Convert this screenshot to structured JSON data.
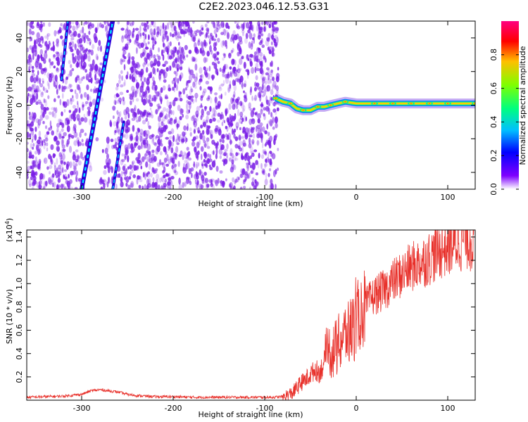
{
  "title": "C2E2.2023.046.12.53.G31",
  "colors": {
    "snr_line": "#e8302a",
    "spectrogram_noise": "#7a1ee6",
    "colorbar_stops": [
      "#ffffff",
      "#7f00ff",
      "#0000ff",
      "#00bfff",
      "#00ff7f",
      "#7fff00",
      "#ffbf00",
      "#ff0000",
      "#ff0080"
    ]
  },
  "chart_data": [
    {
      "type": "heatmap",
      "name": "spectrogram",
      "xlabel": "Height of straight line (km)",
      "ylabel": "Frequency (Hz)",
      "xlim": [
        -360,
        130
      ],
      "ylim": [
        -50,
        50
      ],
      "x_ticks": [
        -300,
        -200,
        -100,
        0,
        100
      ],
      "y_ticks": [
        -40,
        -20,
        0,
        20,
        40
      ],
      "colorbar": {
        "label": "Normalized spectral amplitude",
        "range": [
          0.0,
          1.0
        ],
        "ticks": [
          0.0,
          0.2,
          0.4,
          0.6,
          0.8
        ]
      },
      "noise_region_x": [
        -360,
        -85
      ],
      "gap_region": {
        "x": [
          -292,
          -270
        ],
        "y": [
          -50,
          50
        ]
      },
      "ridge_lines": [
        {
          "x": [
            -300,
            -266
          ],
          "y": [
            -50,
            50
          ]
        },
        {
          "x": [
            -322,
            -315
          ],
          "y": [
            15,
            50
          ]
        },
        {
          "x": [
            -266,
            -254
          ],
          "y": [
            -50,
            -10
          ]
        }
      ],
      "signal_track": {
        "x": [
          -88,
          -80,
          -72,
          -65,
          -58,
          -50,
          -42,
          -35,
          -28,
          -20,
          -12,
          0,
          20,
          40,
          60,
          80,
          100,
          130
        ],
        "y": [
          4,
          2,
          1,
          -2,
          -3,
          -3,
          -1,
          -1,
          0,
          1,
          2,
          1,
          1,
          1,
          1,
          1,
          1,
          1
        ]
      }
    },
    {
      "type": "line",
      "name": "snr",
      "xlabel": "Height of straight line (km)",
      "ylabel": "SNR (10 * v/v)",
      "multiplier_label": "(x10",
      "multiplier_exp": "4",
      "xlim": [
        -360,
        130
      ],
      "ylim": [
        0,
        14600
      ],
      "x_ticks": [
        -300,
        -200,
        -100,
        0,
        100
      ],
      "y_ticks": [
        2000,
        4000,
        6000,
        8000,
        10000,
        12000,
        14000
      ],
      "y_tick_labels": [
        "0.2",
        "0.4",
        "0.6",
        "0.8",
        "1.0",
        "1.2",
        "1.4"
      ],
      "x": [
        -360,
        -340,
        -320,
        -300,
        -290,
        -280,
        -270,
        -260,
        -250,
        -240,
        -220,
        -200,
        -180,
        -150,
        -120,
        -100,
        -90,
        -80,
        -70,
        -60,
        -55,
        -50,
        -45,
        -40,
        -35,
        -30,
        -25,
        -20,
        -15,
        -10,
        -5,
        0,
        5,
        10,
        15,
        20,
        25,
        30,
        40,
        50,
        60,
        70,
        80,
        90,
        100,
        110,
        120,
        130
      ],
      "y": [
        250,
        300,
        350,
        500,
        800,
        900,
        800,
        700,
        500,
        400,
        300,
        300,
        250,
        250,
        250,
        250,
        250,
        300,
        600,
        1500,
        1800,
        2200,
        2600,
        2400,
        3200,
        4200,
        4200,
        4600,
        5400,
        5800,
        6000,
        6800,
        7600,
        8000,
        8600,
        9000,
        9200,
        9400,
        10200,
        10800,
        11400,
        11800,
        12200,
        12800,
        13200,
        13600,
        14000,
        13800
      ]
    }
  ]
}
